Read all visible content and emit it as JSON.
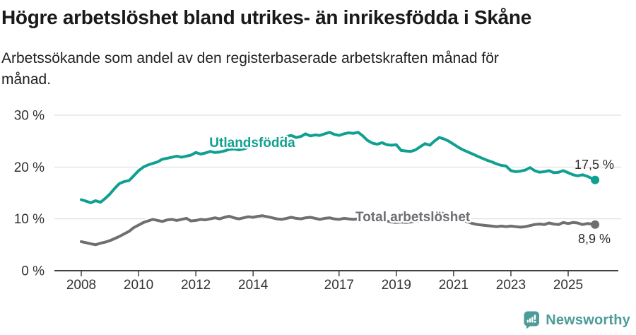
{
  "header": {
    "title": "Högre arbetslöshet bland utrikes- än inrikesfödda i Skåne",
    "subtitle_lines": [
      "Arbetssökande som andel av den registerbaserade arbetskraften månad för",
      "månad."
    ]
  },
  "footer": {
    "brand": "Newsworthy",
    "brand_color": "#4d9c98",
    "logo_icon": "speech-bubble-bar-chart-exclamation"
  },
  "chart_data": {
    "type": "line",
    "title": "",
    "xlabel": "",
    "ylabel": "",
    "grid": "horizontal",
    "legend_position": "inline-labels",
    "xlim": [
      2007.05,
      2026.9
    ],
    "ylim": [
      0,
      31
    ],
    "x_ticks": [
      2008,
      2010,
      2012,
      2014,
      2017,
      2019,
      2021,
      2023,
      2025
    ],
    "y_ticks": [
      {
        "value": 0,
        "label": "0 %"
      },
      {
        "value": 10,
        "label": "10 %"
      },
      {
        "value": 20,
        "label": "20 %"
      },
      {
        "value": 30,
        "label": "30 %"
      }
    ],
    "series": [
      {
        "name": "Utlandsfödda",
        "color": "#10a091",
        "end_label": "17,5 %",
        "last_value": 17.5,
        "points": [
          [
            2008.0,
            13.7
          ],
          [
            2008.17,
            13.4
          ],
          [
            2008.33,
            13.1
          ],
          [
            2008.5,
            13.5
          ],
          [
            2008.67,
            13.2
          ],
          [
            2008.83,
            13.9
          ],
          [
            2009.0,
            14.8
          ],
          [
            2009.17,
            15.9
          ],
          [
            2009.33,
            16.8
          ],
          [
            2009.5,
            17.2
          ],
          [
            2009.67,
            17.4
          ],
          [
            2009.83,
            18.3
          ],
          [
            2010.0,
            19.3
          ],
          [
            2010.17,
            20.0
          ],
          [
            2010.33,
            20.4
          ],
          [
            2010.5,
            20.7
          ],
          [
            2010.67,
            21.0
          ],
          [
            2010.83,
            21.5
          ],
          [
            2011.0,
            21.7
          ],
          [
            2011.17,
            21.9
          ],
          [
            2011.33,
            22.1
          ],
          [
            2011.5,
            21.9
          ],
          [
            2011.67,
            22.1
          ],
          [
            2011.83,
            22.3
          ],
          [
            2012.0,
            22.8
          ],
          [
            2012.17,
            22.5
          ],
          [
            2012.33,
            22.7
          ],
          [
            2012.5,
            23.0
          ],
          [
            2012.67,
            22.8
          ],
          [
            2012.83,
            22.9
          ],
          [
            2013.0,
            23.1
          ],
          [
            2013.17,
            23.4
          ],
          [
            2013.33,
            23.5
          ],
          [
            2013.5,
            23.3
          ],
          [
            2013.67,
            23.5
          ],
          [
            2013.83,
            23.8
          ],
          [
            2014.0,
            24.1
          ],
          [
            2014.17,
            24.4
          ],
          [
            2014.33,
            24.0
          ],
          [
            2014.5,
            24.2
          ],
          [
            2014.67,
            24.6
          ],
          [
            2014.83,
            24.9
          ],
          [
            2015.0,
            25.5
          ],
          [
            2015.17,
            25.9
          ],
          [
            2015.33,
            26.1
          ],
          [
            2015.5,
            25.7
          ],
          [
            2015.67,
            25.9
          ],
          [
            2015.83,
            26.4
          ],
          [
            2016.0,
            26.0
          ],
          [
            2016.17,
            26.2
          ],
          [
            2016.33,
            26.1
          ],
          [
            2016.5,
            26.4
          ],
          [
            2016.67,
            26.7
          ],
          [
            2016.83,
            26.3
          ],
          [
            2017.0,
            26.1
          ],
          [
            2017.17,
            26.4
          ],
          [
            2017.33,
            26.6
          ],
          [
            2017.5,
            26.5
          ],
          [
            2017.67,
            26.7
          ],
          [
            2017.83,
            26.0
          ],
          [
            2018.0,
            25.1
          ],
          [
            2018.17,
            24.6
          ],
          [
            2018.33,
            24.4
          ],
          [
            2018.5,
            24.7
          ],
          [
            2018.67,
            24.3
          ],
          [
            2018.83,
            24.2
          ],
          [
            2019.0,
            24.3
          ],
          [
            2019.17,
            23.2
          ],
          [
            2019.33,
            23.1
          ],
          [
            2019.5,
            23.0
          ],
          [
            2019.67,
            23.3
          ],
          [
            2019.83,
            23.9
          ],
          [
            2020.0,
            24.5
          ],
          [
            2020.17,
            24.2
          ],
          [
            2020.33,
            25.0
          ],
          [
            2020.5,
            25.7
          ],
          [
            2020.67,
            25.4
          ],
          [
            2020.83,
            25.0
          ],
          [
            2021.0,
            24.4
          ],
          [
            2021.17,
            23.8
          ],
          [
            2021.33,
            23.3
          ],
          [
            2021.5,
            22.9
          ],
          [
            2021.67,
            22.5
          ],
          [
            2021.83,
            22.1
          ],
          [
            2022.0,
            21.7
          ],
          [
            2022.17,
            21.3
          ],
          [
            2022.33,
            21.0
          ],
          [
            2022.5,
            20.6
          ],
          [
            2022.67,
            20.3
          ],
          [
            2022.83,
            20.2
          ],
          [
            2023.0,
            19.3
          ],
          [
            2023.17,
            19.1
          ],
          [
            2023.33,
            19.2
          ],
          [
            2023.5,
            19.4
          ],
          [
            2023.67,
            19.9
          ],
          [
            2023.83,
            19.3
          ],
          [
            2024.0,
            19.0
          ],
          [
            2024.17,
            19.1
          ],
          [
            2024.33,
            19.3
          ],
          [
            2024.5,
            18.9
          ],
          [
            2024.67,
            19.0
          ],
          [
            2024.83,
            19.3
          ],
          [
            2025.0,
            18.9
          ],
          [
            2025.17,
            18.5
          ],
          [
            2025.33,
            18.3
          ],
          [
            2025.5,
            18.5
          ],
          [
            2025.67,
            18.2
          ],
          [
            2025.83,
            17.8
          ],
          [
            2025.94,
            17.5
          ]
        ]
      },
      {
        "name": "Total arbetslöshet",
        "color": "#6e6e73",
        "end_label": "8,9 %",
        "last_value": 8.9,
        "points": [
          [
            2008.0,
            5.6
          ],
          [
            2008.17,
            5.4
          ],
          [
            2008.33,
            5.2
          ],
          [
            2008.5,
            5.0
          ],
          [
            2008.67,
            5.3
          ],
          [
            2008.83,
            5.5
          ],
          [
            2009.0,
            5.8
          ],
          [
            2009.17,
            6.2
          ],
          [
            2009.33,
            6.6
          ],
          [
            2009.5,
            7.1
          ],
          [
            2009.67,
            7.6
          ],
          [
            2009.83,
            8.3
          ],
          [
            2010.0,
            8.8
          ],
          [
            2010.17,
            9.3
          ],
          [
            2010.33,
            9.6
          ],
          [
            2010.5,
            9.9
          ],
          [
            2010.67,
            9.7
          ],
          [
            2010.83,
            9.5
          ],
          [
            2011.0,
            9.8
          ],
          [
            2011.17,
            9.9
          ],
          [
            2011.33,
            9.7
          ],
          [
            2011.5,
            9.9
          ],
          [
            2011.67,
            10.1
          ],
          [
            2011.83,
            9.6
          ],
          [
            2012.0,
            9.7
          ],
          [
            2012.17,
            9.9
          ],
          [
            2012.33,
            9.8
          ],
          [
            2012.5,
            10.0
          ],
          [
            2012.67,
            10.2
          ],
          [
            2012.83,
            10.0
          ],
          [
            2013.0,
            10.3
          ],
          [
            2013.17,
            10.5
          ],
          [
            2013.33,
            10.2
          ],
          [
            2013.5,
            10.0
          ],
          [
            2013.67,
            10.2
          ],
          [
            2013.83,
            10.4
          ],
          [
            2014.0,
            10.3
          ],
          [
            2014.17,
            10.5
          ],
          [
            2014.33,
            10.6
          ],
          [
            2014.5,
            10.4
          ],
          [
            2014.67,
            10.2
          ],
          [
            2014.83,
            10.0
          ],
          [
            2015.0,
            9.9
          ],
          [
            2015.17,
            10.1
          ],
          [
            2015.33,
            10.3
          ],
          [
            2015.5,
            10.1
          ],
          [
            2015.67,
            10.0
          ],
          [
            2015.83,
            10.2
          ],
          [
            2016.0,
            10.3
          ],
          [
            2016.17,
            10.1
          ],
          [
            2016.33,
            9.9
          ],
          [
            2016.5,
            10.1
          ],
          [
            2016.67,
            10.2
          ],
          [
            2016.83,
            10.0
          ],
          [
            2017.0,
            9.9
          ],
          [
            2017.17,
            10.1
          ],
          [
            2017.33,
            10.0
          ],
          [
            2017.5,
            9.9
          ],
          [
            2017.67,
            10.0
          ],
          [
            2017.83,
            9.8
          ],
          [
            2018.0,
            9.7
          ],
          [
            2018.17,
            9.8
          ],
          [
            2018.33,
            9.6
          ],
          [
            2018.5,
            9.5
          ],
          [
            2018.67,
            9.6
          ],
          [
            2018.83,
            9.4
          ],
          [
            2019.0,
            9.3
          ],
          [
            2019.17,
            9.4
          ],
          [
            2019.33,
            9.3
          ],
          [
            2019.5,
            9.4
          ],
          [
            2019.67,
            9.5
          ],
          [
            2019.83,
            9.7
          ],
          [
            2020.0,
            9.9
          ],
          [
            2020.17,
            10.6
          ],
          [
            2020.33,
            11.2
          ],
          [
            2020.5,
            11.3
          ],
          [
            2020.67,
            11.0
          ],
          [
            2020.83,
            10.7
          ],
          [
            2021.0,
            10.3
          ],
          [
            2021.17,
            10.0
          ],
          [
            2021.33,
            9.7
          ],
          [
            2021.5,
            9.4
          ],
          [
            2021.67,
            9.1
          ],
          [
            2021.83,
            8.9
          ],
          [
            2022.0,
            8.8
          ],
          [
            2022.17,
            8.7
          ],
          [
            2022.33,
            8.6
          ],
          [
            2022.5,
            8.5
          ],
          [
            2022.67,
            8.6
          ],
          [
            2022.83,
            8.5
          ],
          [
            2023.0,
            8.6
          ],
          [
            2023.17,
            8.5
          ],
          [
            2023.33,
            8.4
          ],
          [
            2023.5,
            8.5
          ],
          [
            2023.67,
            8.7
          ],
          [
            2023.83,
            8.9
          ],
          [
            2024.0,
            9.0
          ],
          [
            2024.17,
            8.9
          ],
          [
            2024.33,
            9.2
          ],
          [
            2024.5,
            9.0
          ],
          [
            2024.67,
            8.9
          ],
          [
            2024.83,
            9.3
          ],
          [
            2025.0,
            9.1
          ],
          [
            2025.17,
            9.3
          ],
          [
            2025.33,
            9.2
          ],
          [
            2025.5,
            8.9
          ],
          [
            2025.67,
            9.1
          ],
          [
            2025.83,
            9.0
          ],
          [
            2025.94,
            8.9
          ]
        ]
      }
    ]
  }
}
